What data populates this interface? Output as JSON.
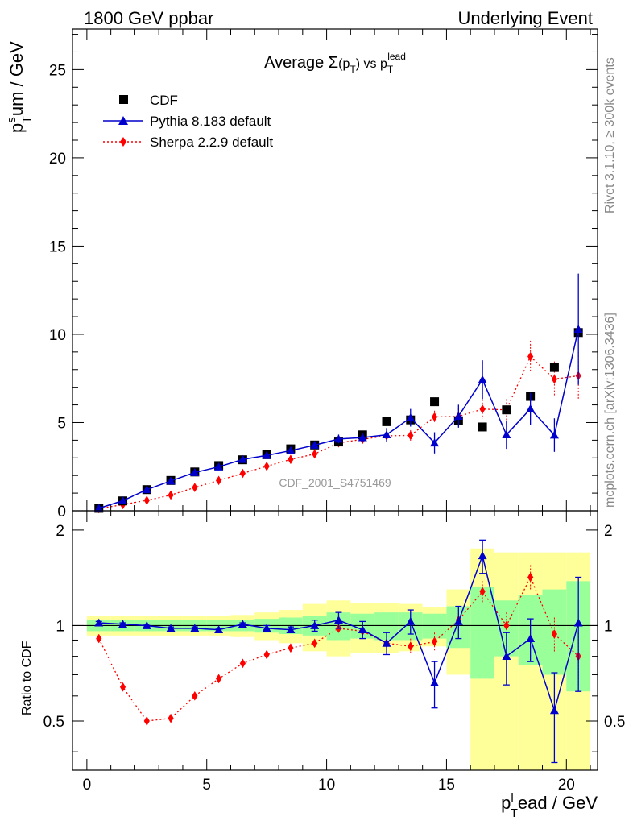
{
  "header": {
    "left": "1800 GeV ppbar",
    "right": "Underlying Event"
  },
  "side_labels": {
    "rivet": "Rivet 3.1.10, ≥ 300k events",
    "mcplots": "mcplots.cern.ch [arXiv:1306.3436]"
  },
  "chart_data": {
    "type": "scatter",
    "title": "Average Σ(p_T) vs p_T^lead",
    "title_parts": {
      "main": "Average ",
      "sigma": "Σ",
      "paren_open": "(p",
      "paren_sub": "T",
      "paren_close": ")",
      "vs": " vs p",
      "lead_sub": "T",
      "lead_sup": "lead"
    },
    "ylabel": {
      "p": "p",
      "sup": "s",
      "sub": "T",
      "rest": "um / GeV"
    },
    "xlabel": {
      "p": "p",
      "sup": "l",
      "sub": "T",
      "rest": "ead / GeV"
    },
    "ratio_ylabel": "Ratio to CDF",
    "watermark": "CDF_2001_S4751469",
    "xlim": [
      -0.6,
      21.3
    ],
    "ylim": [
      0,
      27.3
    ],
    "ratio_ylim": [
      0.35,
      2.3
    ],
    "x_ticks": [
      "0",
      "5",
      "10",
      "15",
      "20"
    ],
    "y_ticks": [
      "0",
      "5",
      "10",
      "15",
      "20",
      "25"
    ],
    "ratio_ticks": [
      "0.5",
      "1",
      "2"
    ],
    "legend": {
      "position": "top-left",
      "entries": [
        "CDF",
        "Pythia 8.183 default",
        "Sherpa 2.2.9 default"
      ]
    },
    "colors": {
      "data": "#000000",
      "pythia": "#0000cc",
      "sherpa": "#ff0000",
      "band_inner": "#99ff99",
      "band_outer": "#ffff99"
    },
    "x": [
      0.5,
      1.5,
      2.5,
      3.5,
      4.5,
      5.5,
      6.5,
      7.5,
      8.5,
      9.5,
      10.5,
      11.5,
      12.5,
      13.5,
      14.5,
      15.5,
      16.5,
      17.5,
      18.5,
      19.5,
      20.5
    ],
    "series": [
      {
        "name": "CDF",
        "values": [
          0.14,
          0.56,
          1.2,
          1.72,
          2.2,
          2.56,
          2.89,
          3.18,
          3.51,
          3.73,
          3.9,
          4.3,
          5.05,
          5.15,
          6.18,
          5.1,
          4.75,
          5.72,
          6.48,
          8.12,
          10.1
        ]
      },
      {
        "name": "Pythia 8.183 default",
        "values": [
          0.14,
          0.57,
          1.2,
          1.69,
          2.17,
          2.49,
          2.91,
          3.14,
          3.41,
          3.72,
          4.07,
          4.15,
          4.31,
          5.27,
          3.85,
          5.36,
          7.43,
          4.31,
          5.78,
          4.29,
          10.29
        ],
        "errors": [
          0.02,
          0.02,
          0.02,
          0.03,
          0.04,
          0.05,
          0.06,
          0.07,
          0.09,
          0.12,
          0.25,
          0.28,
          0.38,
          0.5,
          0.6,
          0.65,
          1.1,
          0.8,
          0.9,
          0.95,
          3.15
        ]
      },
      {
        "name": "Sherpa 2.2.9 default",
        "values": [
          0.12,
          0.35,
          0.59,
          0.89,
          1.32,
          1.72,
          2.12,
          2.52,
          2.91,
          3.22,
          3.85,
          4.05,
          4.25,
          4.27,
          5.32,
          5.35,
          5.76,
          5.72,
          8.74,
          7.46,
          7.65
        ],
        "errors": [
          0.01,
          0.01,
          0.02,
          0.03,
          0.04,
          0.05,
          0.06,
          0.07,
          0.08,
          0.1,
          0.15,
          0.18,
          0.25,
          0.3,
          0.35,
          0.45,
          0.55,
          0.6,
          0.9,
          1.0,
          1.35
        ]
      }
    ],
    "ratio_series": [
      {
        "name": "Pythia 8.183 default",
        "values": [
          1.02,
          1.01,
          1.0,
          0.98,
          0.98,
          0.97,
          1.01,
          0.98,
          0.97,
          1.0,
          1.04,
          0.97,
          0.88,
          1.03,
          0.66,
          1.03,
          1.66,
          0.8,
          0.91,
          0.54,
          1.02
        ],
        "errors": [
          0.01,
          0.01,
          0.01,
          0.01,
          0.01,
          0.01,
          0.01,
          0.02,
          0.02,
          0.04,
          0.06,
          0.06,
          0.07,
          0.09,
          0.11,
          0.12,
          0.2,
          0.15,
          0.14,
          0.17,
          0.4
        ]
      },
      {
        "name": "Sherpa 2.2.9 default",
        "values": [
          0.91,
          0.64,
          0.5,
          0.51,
          0.6,
          0.68,
          0.76,
          0.81,
          0.85,
          0.88,
          0.98,
          0.96,
          0.88,
          0.86,
          0.89,
          1.04,
          1.28,
          1.0,
          1.42,
          0.94,
          0.8
        ],
        "errors": [
          0.01,
          0.01,
          0.01,
          0.01,
          0.01,
          0.01,
          0.01,
          0.01,
          0.02,
          0.02,
          0.03,
          0.04,
          0.05,
          0.05,
          0.06,
          0.08,
          0.1,
          0.1,
          0.13,
          0.12,
          0.15
        ]
      }
    ],
    "ratio_band_inner": [
      0.04,
      0.04,
      0.04,
      0.04,
      0.04,
      0.04,
      0.04,
      0.05,
      0.06,
      0.07,
      0.1,
      0.09,
      0.1,
      0.1,
      0.09,
      0.15,
      0.32,
      0.2,
      0.25,
      0.3,
      0.38
    ],
    "ratio_band_outer": [
      0.07,
      0.07,
      0.07,
      0.07,
      0.07,
      0.07,
      0.08,
      0.1,
      0.12,
      0.17,
      0.2,
      0.18,
      0.18,
      0.17,
      0.14,
      0.3,
      0.75,
      0.7,
      0.7,
      0.7,
      0.7
    ]
  }
}
